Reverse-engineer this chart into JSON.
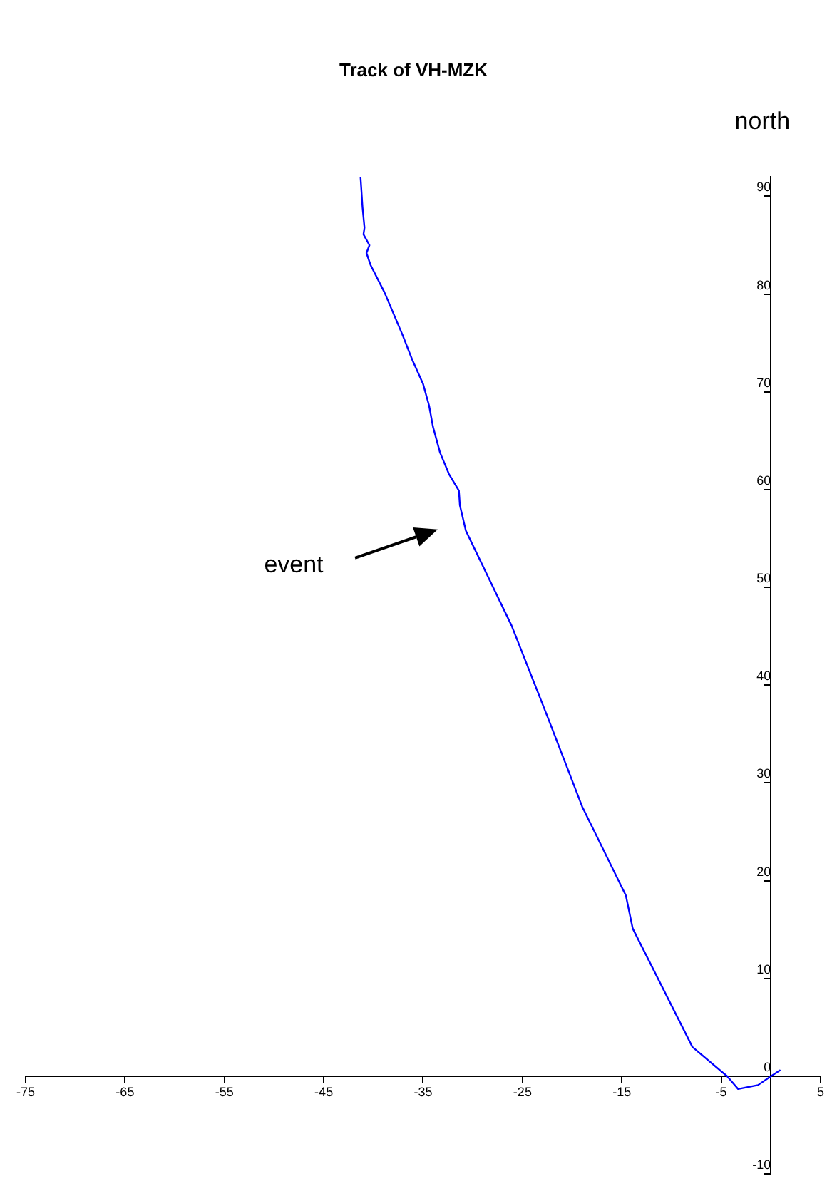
{
  "chart_data": {
    "type": "line",
    "title": "Track of VH-MZK",
    "ylabel": "north",
    "x": [
      -41.3,
      -41.1,
      -40.9,
      -41.0,
      -40.4,
      -40.7,
      -40.3,
      -38.9,
      -37.1,
      -36.1,
      -35.0,
      -34.4,
      -34.0,
      -33.3,
      -32.4,
      -31.4,
      -31.3,
      -30.7,
      -26.1,
      -22.3,
      -19.0,
      -14.6,
      -13.9,
      -7.9,
      -4.4,
      -3.3,
      -1.3,
      0,
      0.9
    ],
    "series": [
      {
        "color": "#0000ff",
        "values": [
          92.0,
          88.9,
          86.8,
          86.1,
          85.0,
          84.2,
          83.0,
          80.2,
          75.9,
          73.3,
          70.8,
          68.6,
          66.4,
          63.8,
          61.6,
          59.9,
          58.4,
          55.8,
          46.1,
          36.3,
          27.6,
          18.5,
          15.1,
          3.0,
          0,
          -1.3,
          -0.9,
          0,
          0.6
        ]
      }
    ],
    "xlim": [
      -75,
      5
    ],
    "xticks": [
      -75,
      -65,
      -55,
      -45,
      -35,
      -25,
      -15,
      -5,
      5
    ],
    "ylim": [
      -10,
      92
    ],
    "yticks": [
      -10,
      0,
      10,
      20,
      30,
      40,
      50,
      60,
      70,
      80,
      90
    ],
    "grid": false,
    "legend": false,
    "marker": "none",
    "line_style": "solid",
    "annotations": [
      "event"
    ]
  }
}
